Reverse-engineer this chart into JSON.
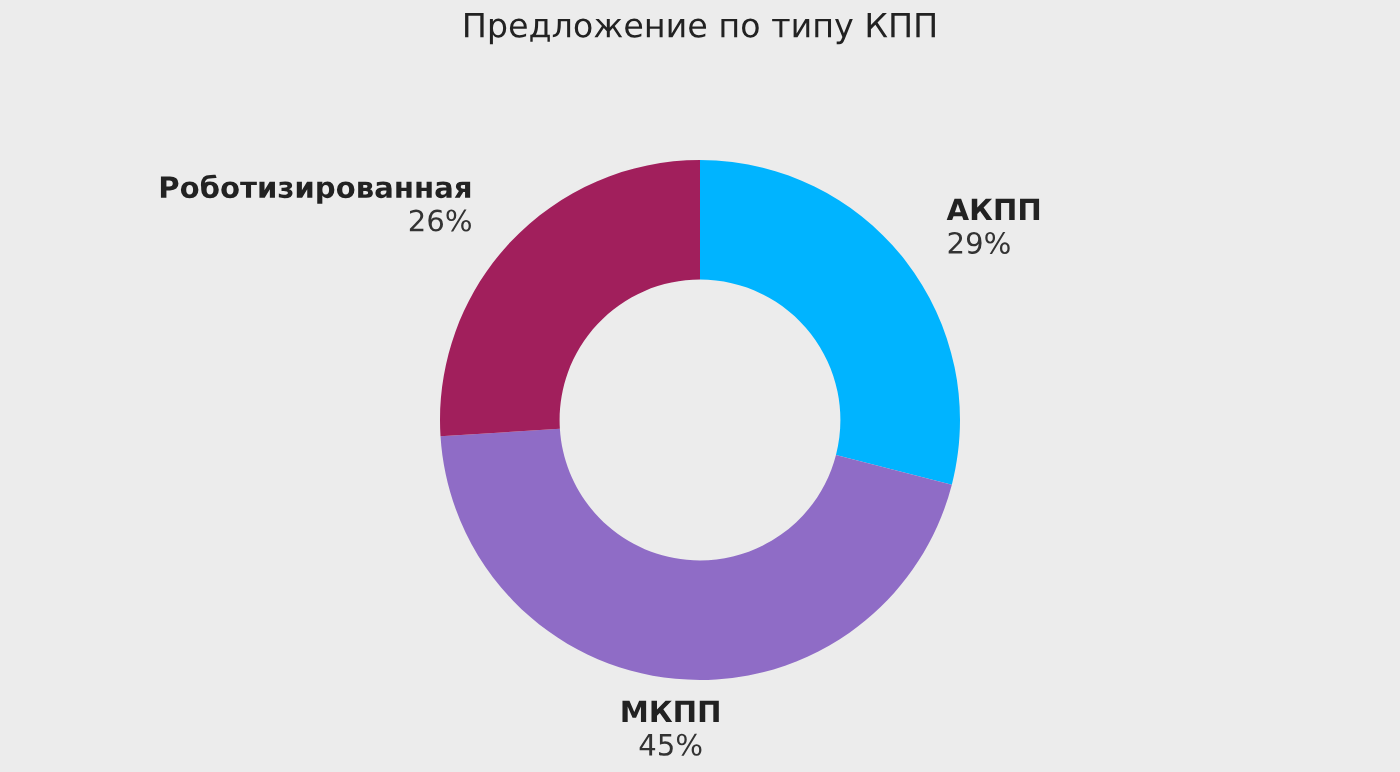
{
  "chart_data": {
    "type": "donut",
    "title": "Предложение по типу КПП",
    "categories": [
      "АКПП",
      "МКПП",
      "Роботизированная"
    ],
    "values": [
      29,
      45,
      26
    ],
    "value_labels": [
      "29%",
      "45%",
      "26%"
    ],
    "colors": [
      "#00b4ff",
      "#8f6cc6",
      "#a11f5c"
    ],
    "legend": false
  }
}
